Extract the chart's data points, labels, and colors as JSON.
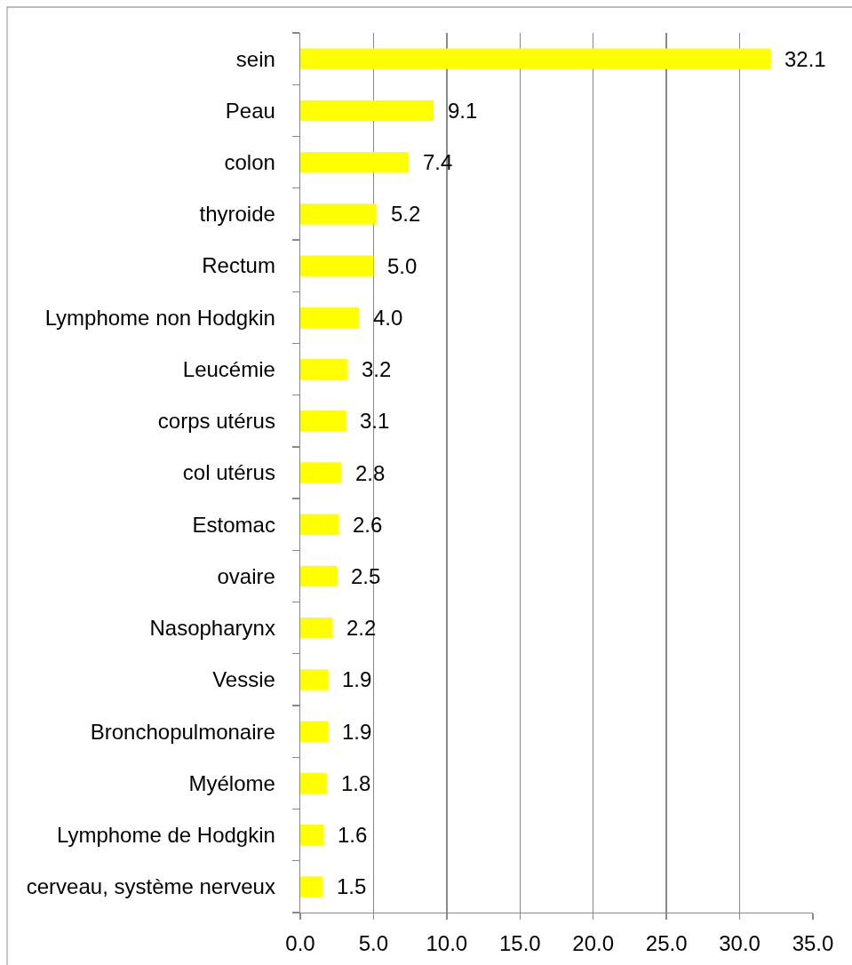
{
  "chart_data": {
    "type": "bar",
    "orientation": "horizontal",
    "categories": [
      "sein",
      "Peau",
      "colon",
      "thyroide",
      "Rectum",
      "Lymphome non Hodgkin",
      "Leucémie",
      "corps utérus",
      "col utérus",
      "Estomac",
      "ovaire",
      "Nasopharynx",
      "Vessie",
      "Bronchopulmonaire",
      "Myélome",
      "Lymphome de Hodgkin",
      "cerveau, système nerveux"
    ],
    "values": [
      32.1,
      9.1,
      7.4,
      5.2,
      5.0,
      4.0,
      3.2,
      3.1,
      2.8,
      2.6,
      2.5,
      2.2,
      1.9,
      1.9,
      1.8,
      1.6,
      1.5
    ],
    "value_labels": [
      "32.1",
      "9.1",
      "7.4",
      "5.2",
      "5.0",
      "4.0",
      "3.2",
      "3.1",
      "2.8",
      "2.6",
      "2.5",
      "2.2",
      "1.9",
      "1.9",
      "1.8",
      "1.6",
      "1.5"
    ],
    "color": "#ffff00",
    "xlim": [
      0,
      35
    ],
    "xticks": [
      {
        "value": 0,
        "label": "0.0"
      },
      {
        "value": 5,
        "label": "5.0"
      },
      {
        "value": 10,
        "label": "10.0"
      },
      {
        "value": 15,
        "label": "15.0"
      },
      {
        "value": 20,
        "label": "20.0"
      },
      {
        "value": 25,
        "label": "25.0"
      },
      {
        "value": 30,
        "label": "30.0"
      },
      {
        "value": 35,
        "label": "35.0"
      }
    ],
    "grid": "x"
  }
}
